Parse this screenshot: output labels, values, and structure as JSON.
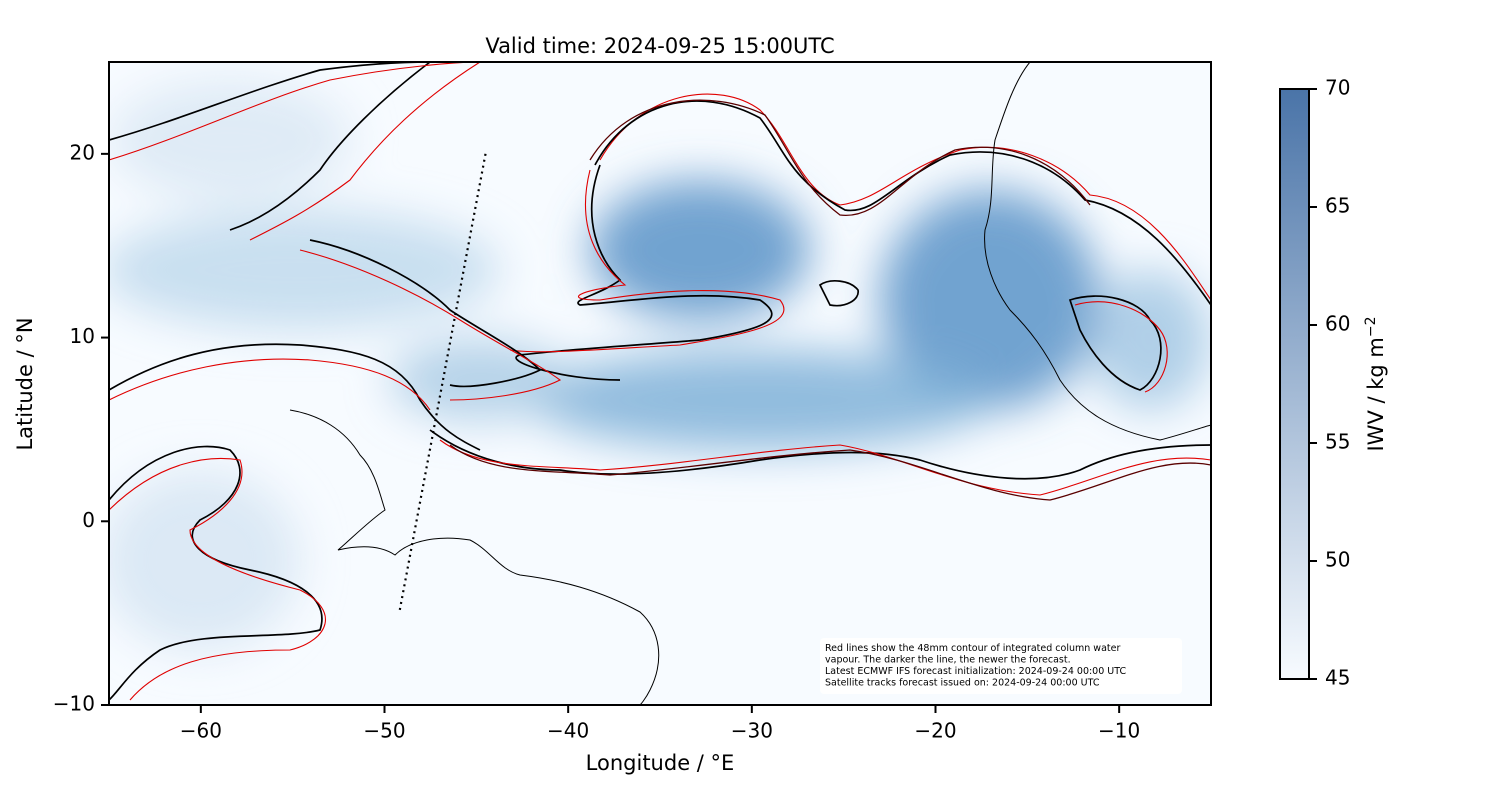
{
  "chart_data": {
    "type": "map",
    "title": "Valid time: 2024-09-25 15:00UTC",
    "x_label": "Longitude / °E",
    "y_label": "Latitude / °N",
    "xlim": [
      -65,
      -5
    ],
    "ylim": [
      -10,
      25
    ],
    "xticks": [
      {
        "value": -60,
        "label": "−60"
      },
      {
        "value": -50,
        "label": "−50"
      },
      {
        "value": -40,
        "label": "−40"
      },
      {
        "value": -30,
        "label": "−30"
      },
      {
        "value": -20,
        "label": "−20"
      },
      {
        "value": -10,
        "label": "−10"
      }
    ],
    "yticks": [
      {
        "value": -10,
        "label": "−10"
      },
      0,
      10,
      20
    ],
    "colorbar": {
      "label": "IWV / kg m",
      "label_exponent": "−2",
      "lim": [
        45,
        70
      ],
      "ticks": [
        45,
        50,
        55,
        60,
        65,
        70
      ],
      "colors": [
        "#f7fbff",
        "#4a74a8"
      ]
    },
    "satellite_track": {
      "lon": [
        -44.5,
        -49.2
      ],
      "lat": [
        20,
        -5
      ]
    },
    "annotation": [
      "Red lines show the 48mm contour of integrated column water",
      "vapour. The darker the line, the newer the forecast.",
      "Latest ECMWF IFS forecast initialization: 2024-09-24 00:00 UTC",
      "Satellite tracks forecast issued on: 2024-09-24 00:00 UTC"
    ]
  }
}
